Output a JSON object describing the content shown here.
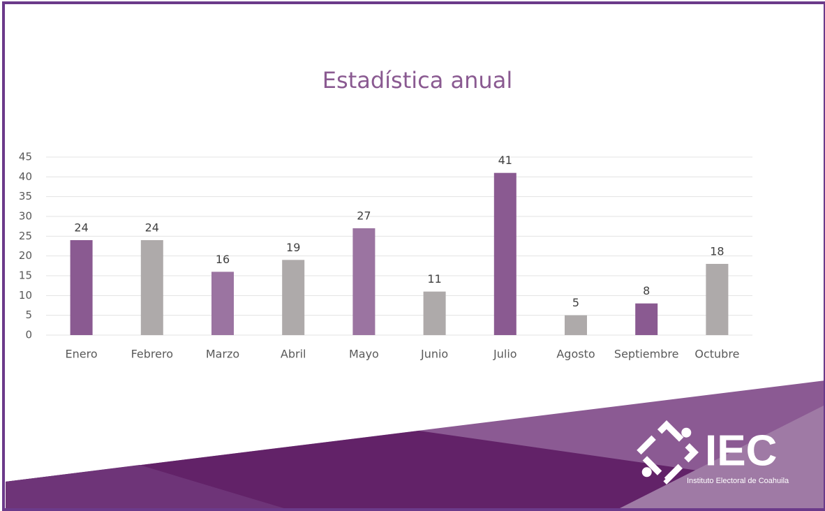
{
  "chart_data": {
    "type": "bar",
    "title": "Estadística anual",
    "categories": [
      "Enero",
      "Febrero",
      "Marzo",
      "Abril",
      "Mayo",
      "Junio",
      "Julio",
      "Agosto",
      "Septiembre",
      "Octubre"
    ],
    "values": [
      24,
      24,
      16,
      19,
      27,
      11,
      41,
      5,
      8,
      18
    ],
    "colors": [
      "#8a5a91",
      "#aeaaaa",
      "#9b74a1",
      "#aeaaaa",
      "#9b74a1",
      "#aeaaaa",
      "#8a5a91",
      "#aeaaaa",
      "#8a5a91",
      "#aeaaaa"
    ],
    "ylim": [
      0,
      45
    ],
    "yticks": [
      0,
      5,
      10,
      15,
      20,
      25,
      30,
      35,
      40,
      45
    ],
    "grid": true
  },
  "logo": {
    "text": "IEC",
    "subtitle": "Instituto Electoral de Coahuila"
  }
}
